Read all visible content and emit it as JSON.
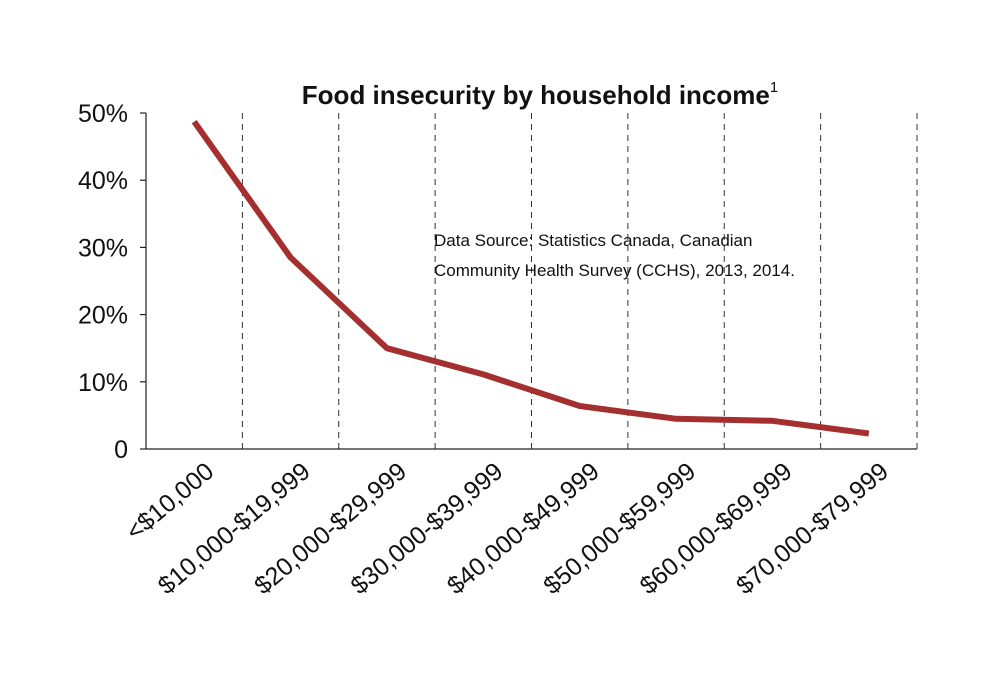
{
  "chart_data": {
    "type": "line",
    "title": "Food insecurity by household income",
    "title_footnote_marker": "1",
    "xlabel": "",
    "ylabel": "",
    "categories": [
      "<$10,000",
      "$10,000-$19,999",
      "$20,000-$29,999",
      "$30,000-$39,999",
      "$40,000-$49,999",
      "$50,000-$59,999",
      "$60,000-$69,999",
      "$70,000-$79,999"
    ],
    "y_tick_labels": [
      "0",
      "10%",
      "20%",
      "30%",
      "40%",
      "50%"
    ],
    "ylim": [
      0,
      50
    ],
    "series": [
      {
        "values": [
          48.7,
          28.5,
          15.0,
          11.1,
          6.4,
          4.5,
          4.2,
          2.3
        ],
        "color": "#a3302e"
      }
    ],
    "grid": {
      "vertical": true,
      "style": "dashed",
      "horizontal": false
    },
    "annotation": {
      "lines": [
        "Data Source: Statistics Canada, Canadian",
        "Community Health Survey (CCHS), 2013, 2014."
      ]
    }
  }
}
